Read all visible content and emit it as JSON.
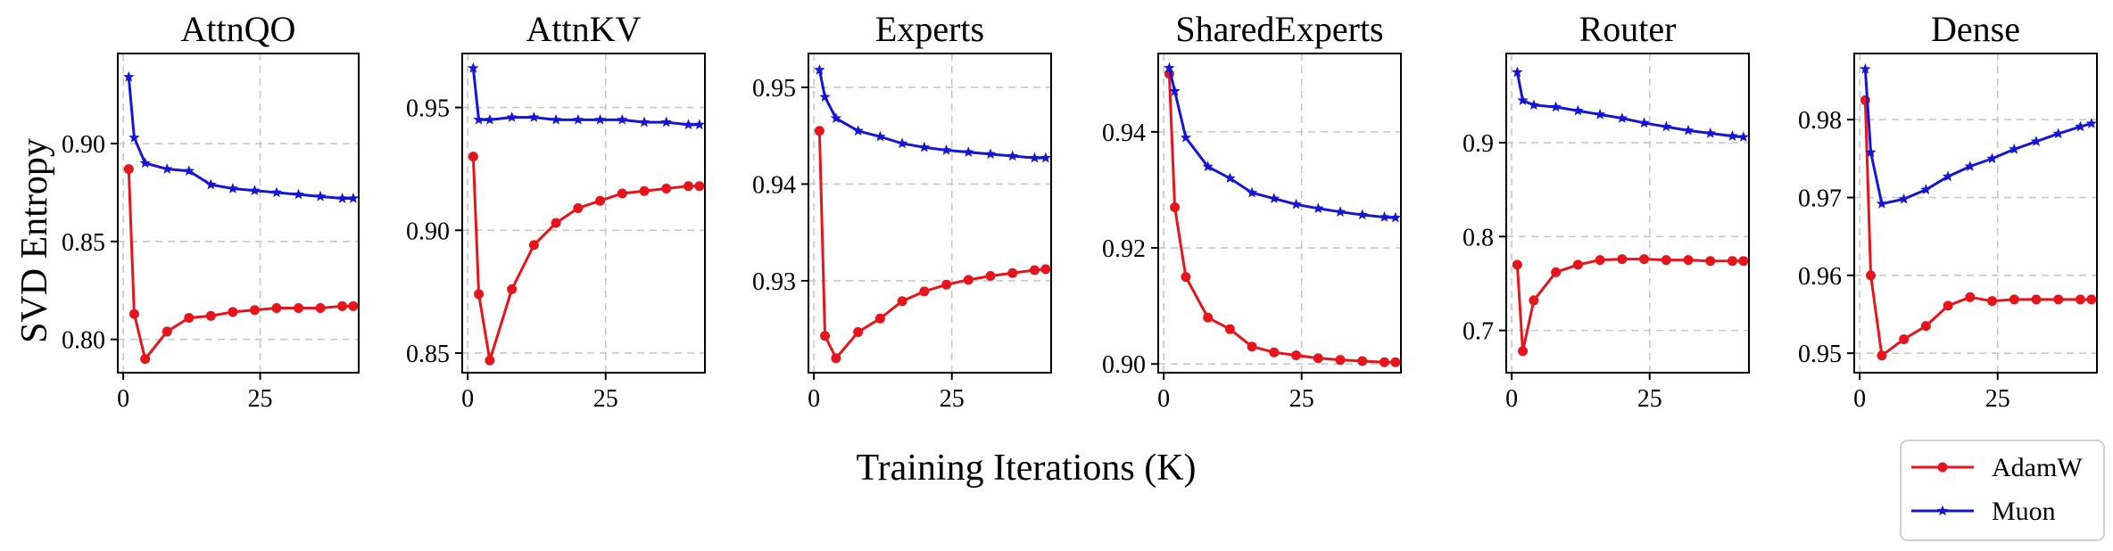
{
  "figure": {
    "ylabel": "SVD Entropy",
    "xlabel": "Training Iterations (K)"
  },
  "colors": {
    "AdamW": "#e8141c",
    "Muon": "#1515d6"
  },
  "legend": {
    "placement": "bottom-right",
    "entries": [
      "AdamW",
      "Muon"
    ]
  },
  "chart_data": [
    {
      "type": "line",
      "title": "AttnQO",
      "x_ticks": [
        0,
        25
      ],
      "y_ticks": [
        0.8,
        0.85,
        0.9
      ],
      "y_tick_labels": [
        "0.80",
        "0.85",
        "0.90"
      ],
      "xlim": [
        -1,
        43
      ],
      "ylim": [
        0.783,
        0.946
      ],
      "grid": true,
      "x": [
        1,
        2,
        4,
        8,
        12,
        16,
        20,
        24,
        28,
        32,
        36,
        40,
        42
      ],
      "series": [
        {
          "name": "AdamW",
          "values": [
            0.887,
            0.813,
            0.79,
            0.804,
            0.811,
            0.812,
            0.814,
            0.815,
            0.816,
            0.816,
            0.816,
            0.817,
            0.817
          ]
        },
        {
          "name": "Muon",
          "values": [
            0.934,
            0.903,
            0.89,
            0.887,
            0.886,
            0.879,
            0.877,
            0.876,
            0.875,
            0.874,
            0.873,
            0.872,
            0.872
          ]
        }
      ]
    },
    {
      "type": "line",
      "title": "AttnKV",
      "x_ticks": [
        0,
        25
      ],
      "y_ticks": [
        0.85,
        0.9,
        0.95
      ],
      "y_tick_labels": [
        "0.85",
        "0.90",
        "0.95"
      ],
      "xlim": [
        -1,
        43
      ],
      "ylim": [
        0.842,
        0.972
      ],
      "grid": true,
      "x": [
        1,
        2,
        4,
        8,
        12,
        16,
        20,
        24,
        28,
        32,
        36,
        40,
        42
      ],
      "series": [
        {
          "name": "AdamW",
          "values": [
            0.93,
            0.874,
            0.847,
            0.876,
            0.894,
            0.903,
            0.909,
            0.912,
            0.915,
            0.916,
            0.917,
            0.918,
            0.918
          ]
        },
        {
          "name": "Muon",
          "values": [
            0.966,
            0.945,
            0.945,
            0.946,
            0.946,
            0.945,
            0.945,
            0.945,
            0.945,
            0.944,
            0.944,
            0.943,
            0.943
          ]
        }
      ]
    },
    {
      "type": "line",
      "title": "Experts",
      "x_ticks": [
        0,
        25
      ],
      "y_ticks": [
        0.93,
        0.94,
        0.95
      ],
      "y_tick_labels": [
        "0.93",
        "0.94",
        "0.95"
      ],
      "xlim": [
        -1,
        43
      ],
      "ylim": [
        0.9205,
        0.9535
      ],
      "grid": true,
      "x": [
        1,
        2,
        4,
        8,
        12,
        16,
        20,
        24,
        28,
        32,
        36,
        40,
        42
      ],
      "series": [
        {
          "name": "AdamW",
          "values": [
            0.9455,
            0.9243,
            0.922,
            0.9247,
            0.9261,
            0.9279,
            0.9289,
            0.9296,
            0.9301,
            0.9305,
            0.9308,
            0.9311,
            0.9312
          ]
        },
        {
          "name": "Muon",
          "values": [
            0.9518,
            0.949,
            0.9468,
            0.9455,
            0.9449,
            0.9442,
            0.9438,
            0.9435,
            0.9433,
            0.9431,
            0.9429,
            0.9427,
            0.9427
          ]
        }
      ]
    },
    {
      "type": "line",
      "title": "SharedExperts",
      "x_ticks": [
        0,
        25
      ],
      "y_ticks": [
        0.9,
        0.92,
        0.94
      ],
      "y_tick_labels": [
        "0.90",
        "0.92",
        "0.94"
      ],
      "xlim": [
        -1,
        43
      ],
      "ylim": [
        0.8985,
        0.9535
      ],
      "grid": true,
      "x": [
        1,
        2,
        4,
        8,
        12,
        16,
        20,
        24,
        28,
        32,
        36,
        40,
        42
      ],
      "series": [
        {
          "name": "AdamW",
          "values": [
            0.95,
            0.927,
            0.915,
            0.908,
            0.906,
            0.903,
            0.902,
            0.9015,
            0.901,
            0.9007,
            0.9005,
            0.9003,
            0.9003
          ]
        },
        {
          "name": "Muon",
          "values": [
            0.951,
            0.947,
            0.939,
            0.934,
            0.932,
            0.9295,
            0.9285,
            0.9275,
            0.9268,
            0.9262,
            0.9257,
            0.9253,
            0.9252
          ]
        }
      ]
    },
    {
      "type": "line",
      "title": "Router",
      "x_ticks": [
        0,
        25
      ],
      "y_ticks": [
        0.7,
        0.8,
        0.9
      ],
      "y_tick_labels": [
        "0.7",
        "0.8",
        "0.9"
      ],
      "xlim": [
        -1,
        43
      ],
      "ylim": [
        0.655,
        0.995
      ],
      "grid": true,
      "x": [
        1,
        2,
        4,
        8,
        12,
        16,
        20,
        24,
        28,
        32,
        36,
        40,
        42
      ],
      "series": [
        {
          "name": "AdamW",
          "values": [
            0.77,
            0.678,
            0.732,
            0.762,
            0.77,
            0.775,
            0.776,
            0.776,
            0.775,
            0.775,
            0.774,
            0.774,
            0.774
          ]
        },
        {
          "name": "Muon",
          "values": [
            0.975,
            0.945,
            0.94,
            0.938,
            0.934,
            0.93,
            0.926,
            0.921,
            0.917,
            0.913,
            0.91,
            0.907,
            0.906
          ]
        }
      ]
    },
    {
      "type": "line",
      "title": "Dense",
      "x_ticks": [
        0,
        25
      ],
      "y_ticks": [
        0.95,
        0.96,
        0.97,
        0.98
      ],
      "y_tick_labels": [
        "0.95",
        "0.96",
        "0.97",
        "0.98"
      ],
      "xlim": [
        -1,
        43
      ],
      "ylim": [
        0.9475,
        0.9885
      ],
      "grid": true,
      "x": [
        1,
        2,
        4,
        8,
        12,
        16,
        20,
        24,
        28,
        32,
        36,
        40,
        42
      ],
      "series": [
        {
          "name": "AdamW",
          "values": [
            0.9825,
            0.96,
            0.9497,
            0.9518,
            0.9535,
            0.9561,
            0.9572,
            0.9567,
            0.9569,
            0.9569,
            0.9569,
            0.9569,
            0.9569
          ]
        },
        {
          "name": "Muon",
          "values": [
            0.9865,
            0.9758,
            0.9692,
            0.9698,
            0.971,
            0.9727,
            0.974,
            0.975,
            0.9762,
            0.9772,
            0.9782,
            0.9791,
            0.9795
          ]
        }
      ]
    }
  ]
}
